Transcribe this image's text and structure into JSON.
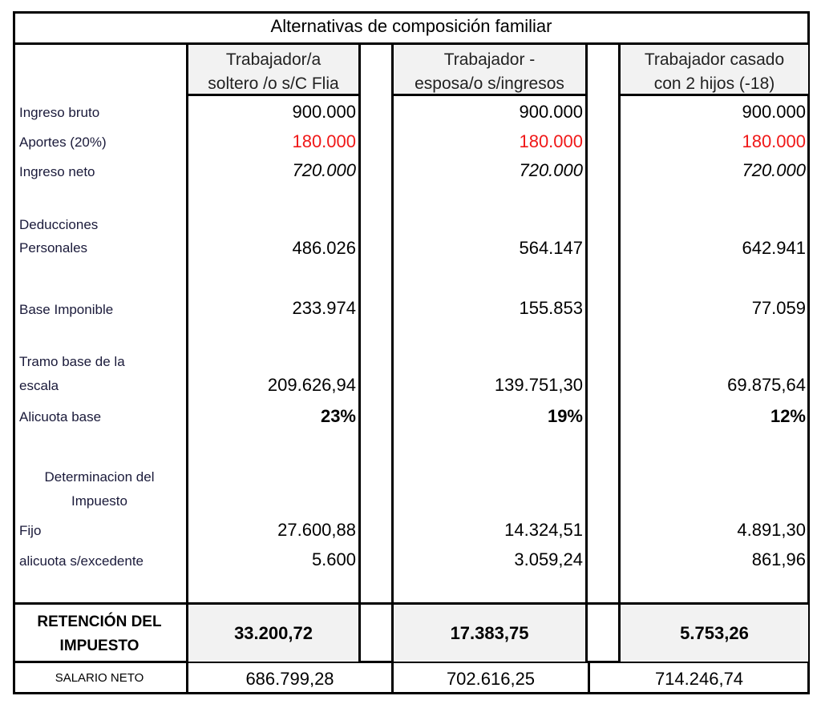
{
  "title": "Alternativas de composición familiar",
  "columns": [
    {
      "header_line1": "Trabajador/a",
      "header_line2": "soltero /o s/C Flia",
      "ingreso_bruto": "900.000",
      "aportes": "180.000",
      "ingreso_neto": "720.000",
      "deducciones": "486.026",
      "base_imponible": "233.974",
      "tramo": "209.626,94",
      "alicuota_base": "23%",
      "fijo": "27.600,88",
      "alicuota_excedente": "5.600",
      "retencion": "33.200,72",
      "salario_neto": "686.799,28"
    },
    {
      "header_line1": "Trabajador -",
      "header_line2": "esposa/o s/ingresos",
      "ingreso_bruto": "900.000",
      "aportes": "180.000",
      "ingreso_neto": "720.000",
      "deducciones": "564.147",
      "base_imponible": "155.853",
      "tramo": "139.751,30",
      "alicuota_base": "19%",
      "fijo": "14.324,51",
      "alicuota_excedente": "3.059,24",
      "retencion": "17.383,75",
      "salario_neto": "702.616,25"
    },
    {
      "header_line1": "Trabajador casado",
      "header_line2": "con 2 hijos (-18)",
      "ingreso_bruto": "900.000",
      "aportes": "180.000",
      "ingreso_neto": "720.000",
      "deducciones": "642.941",
      "base_imponible": "77.059",
      "tramo": "69.875,64",
      "alicuota_base": "12%",
      "fijo": "4.891,30",
      "alicuota_excedente": "861,96",
      "retencion": "5.753,26",
      "salario_neto": "714.246,74"
    }
  ],
  "labels": {
    "ingreso_bruto": "Ingreso bruto",
    "aportes": "Aportes (20%)",
    "ingreso_neto": "Ingreso neto",
    "deducciones_1": "Deducciones",
    "deducciones_2": "Personales",
    "base_imponible": "Base Imponible",
    "tramo_1": "Tramo base de la",
    "tramo_2": "escala",
    "alicuota_base": "Alicuota base",
    "determinacion_1": "Determinacion del",
    "determinacion_2": "Impuesto",
    "fijo": "Fijo",
    "alicuota_excedente": "alicuota s/excedente",
    "retencion_1": "RETENCIÓN DEL",
    "retencion_2": "IMPUESTO",
    "salario_neto": "SALARIO NETO"
  },
  "colors": {
    "negative": "#f01818",
    "header_bg": "#f2f2f2"
  }
}
